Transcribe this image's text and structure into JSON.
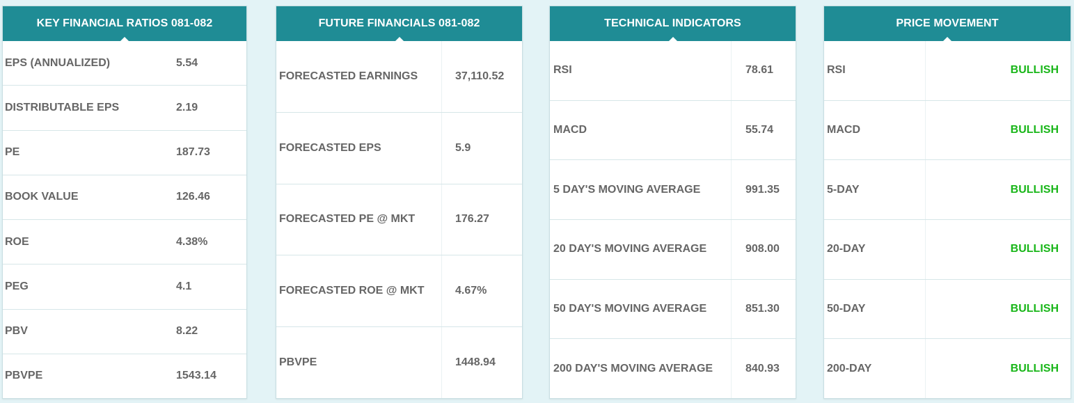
{
  "panels": {
    "key_financial_ratios": {
      "title": "KEY FINANCIAL RATIOS 081-082",
      "rows": [
        {
          "label": "EPS (ANNUALIZED)",
          "value": "5.54"
        },
        {
          "label": "DISTRIBUTABLE EPS",
          "value": "2.19"
        },
        {
          "label": "PE",
          "value": "187.73"
        },
        {
          "label": "BOOK VALUE",
          "value": "126.46"
        },
        {
          "label": "ROE",
          "value": "4.38%"
        },
        {
          "label": "PEG",
          "value": "4.1"
        },
        {
          "label": "PBV",
          "value": "8.22"
        },
        {
          "label": "PBVPE",
          "value": "1543.14"
        }
      ]
    },
    "future_financials": {
      "title": "FUTURE FINANCIALS 081-082",
      "rows": [
        {
          "label": "FORECASTED EARNINGS",
          "value": "37,110.52"
        },
        {
          "label": "FORECASTED EPS",
          "value": "5.9"
        },
        {
          "label": "FORECASTED PE @ MKT",
          "value": "176.27"
        },
        {
          "label": "FORECASTED ROE @ MKT",
          "value": "4.67%"
        },
        {
          "label": "PBVPE",
          "value": "1448.94"
        }
      ]
    },
    "technical_indicators": {
      "title": "TECHNICAL INDICATORS",
      "rows": [
        {
          "label": "RSI",
          "value": "78.61"
        },
        {
          "label": "MACD",
          "value": "55.74"
        },
        {
          "label": "5 DAY'S MOVING AVERAGE",
          "value": "991.35"
        },
        {
          "label": "20 DAY'S MOVING AVERAGE",
          "value": "908.00"
        },
        {
          "label": "50 DAY'S MOVING AVERAGE",
          "value": "851.30"
        },
        {
          "label": "200 DAY'S MOVING AVERAGE",
          "value": "840.93"
        }
      ]
    },
    "price_movement": {
      "title": "PRICE MOVEMENT",
      "rows": [
        {
          "label": "RSI",
          "value": "BULLISH"
        },
        {
          "label": "MACD",
          "value": "BULLISH"
        },
        {
          "label": "5-DAY",
          "value": "BULLISH"
        },
        {
          "label": "20-DAY",
          "value": "BULLISH"
        },
        {
          "label": "50-DAY",
          "value": "BULLISH"
        },
        {
          "label": "200-DAY",
          "value": "BULLISH"
        }
      ]
    }
  },
  "colors": {
    "header_bg": "#1f8c95",
    "page_bg": "#e3f3f6",
    "label_text": "#666666",
    "bullish": "#19b619"
  }
}
